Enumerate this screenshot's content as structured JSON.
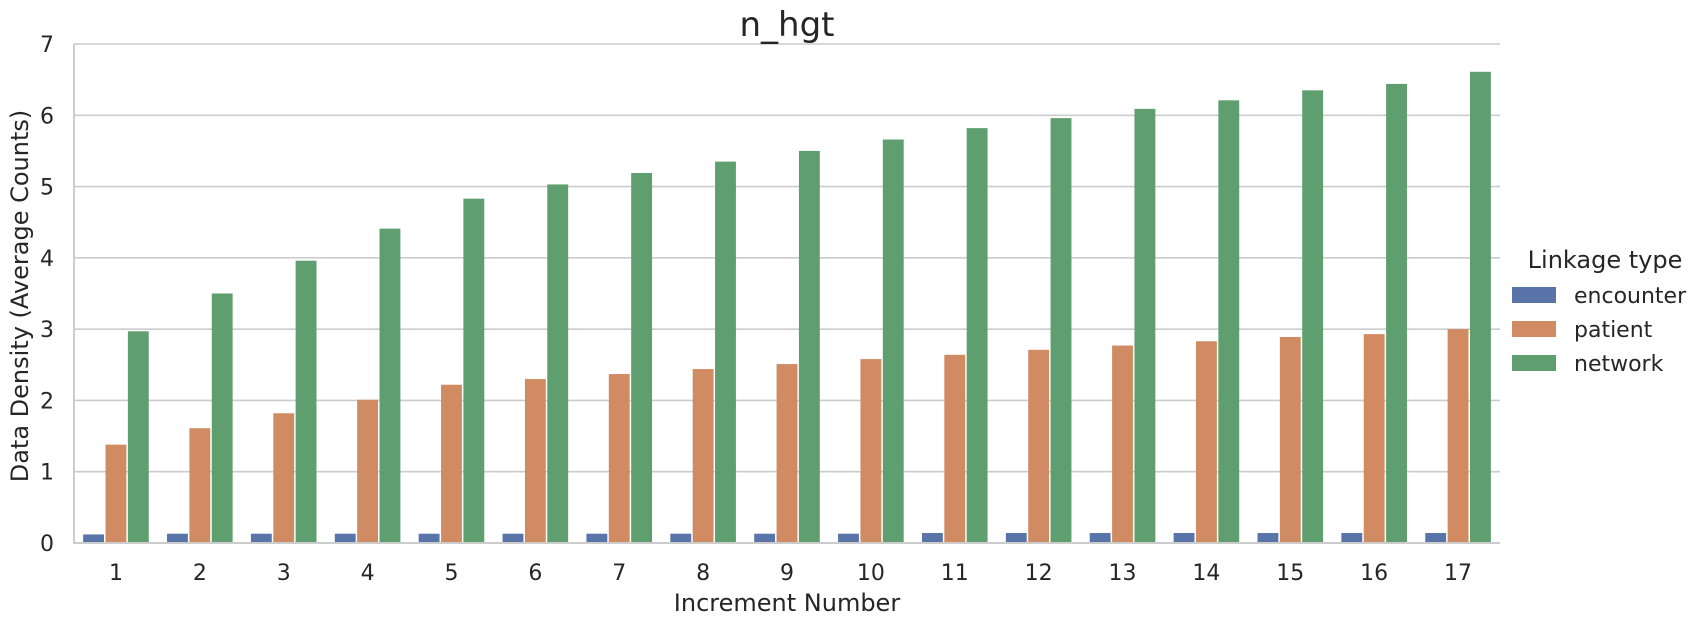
{
  "chart_data": {
    "type": "bar",
    "title": "n_hgt",
    "xlabel": "Increment Number",
    "ylabel": "Data Density (Average Counts)",
    "ylim": [
      0,
      7
    ],
    "yticks": [
      "0",
      "1",
      "2",
      "3",
      "4",
      "5",
      "6",
      "7"
    ],
    "grid": "horizontal",
    "legend_title": "Linkage type",
    "legend_position": "right",
    "categories": [
      "1",
      "2",
      "3",
      "4",
      "5",
      "6",
      "7",
      "8",
      "9",
      "10",
      "11",
      "12",
      "13",
      "14",
      "15",
      "16",
      "17"
    ],
    "series": [
      {
        "name": "encounter",
        "color": "#5874a8",
        "values": [
          0.12,
          0.13,
          0.13,
          0.13,
          0.13,
          0.13,
          0.13,
          0.13,
          0.13,
          0.13,
          0.14,
          0.14,
          0.14,
          0.14,
          0.14,
          0.14,
          0.14
        ]
      },
      {
        "name": "patient",
        "color": "#d08b63",
        "values": [
          1.38,
          1.61,
          1.82,
          2.01,
          2.22,
          2.3,
          2.37,
          2.44,
          2.51,
          2.58,
          2.64,
          2.71,
          2.77,
          2.83,
          2.89,
          2.93,
          3.0
        ]
      },
      {
        "name": "network",
        "color": "#5f9e6e",
        "values": [
          2.97,
          3.5,
          3.96,
          4.41,
          4.83,
          5.03,
          5.19,
          5.35,
          5.5,
          5.66,
          5.82,
          5.96,
          6.09,
          6.21,
          6.35,
          6.44,
          6.61
        ]
      }
    ]
  }
}
